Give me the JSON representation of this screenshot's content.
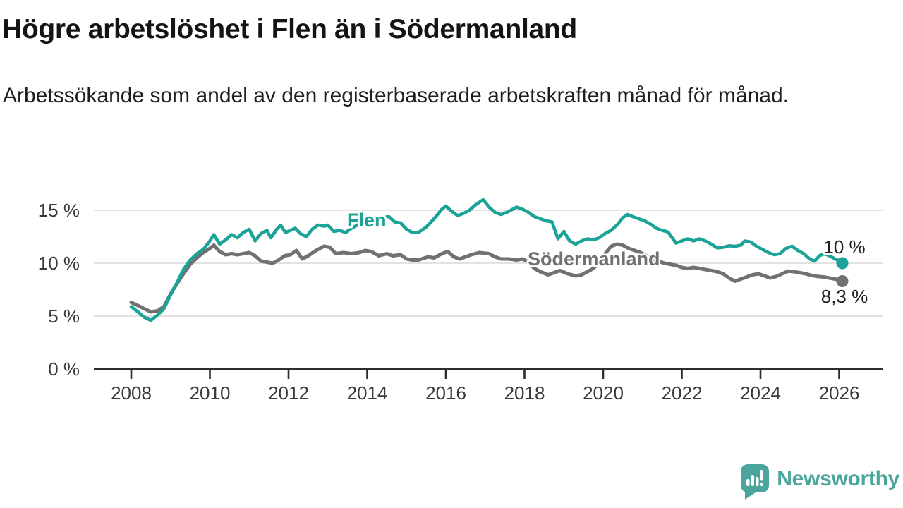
{
  "header": {
    "title": "Högre arbetslöshet i Flen än i Södermanland",
    "subtitle": "Arbetssökande som andel av den registerbaserade arbetskraften månad för månad."
  },
  "branding": {
    "name": "Newsworthy",
    "color": "#4ba59c",
    "icon": "speech-bubble-bar-chart-icon"
  },
  "colors": {
    "flen": "#1aa396",
    "sodermanland": "#717171",
    "gridline": "#d9d9d9",
    "axis": "#2d2d2d",
    "tick_text": "#3a3a3a"
  },
  "chart_data": {
    "type": "line",
    "unit": "%",
    "grid": "horizontal",
    "xlim": [
      2007.1,
      2027.2
    ],
    "ylim": [
      0,
      16.8
    ],
    "x_ticks": [
      "2008",
      "2010",
      "2012",
      "2014",
      "2016",
      "2018",
      "2020",
      "2022",
      "2024",
      "2026"
    ],
    "y_ticks": [
      "0 %",
      "5 %",
      "10 %",
      "15 %"
    ],
    "series": [
      {
        "name": "Flen",
        "color": "#1aa396",
        "end_label": "10 %",
        "end_value": 10.0,
        "points": [
          [
            2008.0,
            5.9
          ],
          [
            2008.17,
            5.4
          ],
          [
            2008.33,
            4.9
          ],
          [
            2008.5,
            4.6
          ],
          [
            2008.67,
            5.1
          ],
          [
            2008.83,
            5.7
          ],
          [
            2009.0,
            7.0
          ],
          [
            2009.17,
            8.2
          ],
          [
            2009.33,
            9.4
          ],
          [
            2009.5,
            10.3
          ],
          [
            2009.67,
            10.9
          ],
          [
            2009.83,
            11.3
          ],
          [
            2010.0,
            12.1
          ],
          [
            2010.1,
            12.7
          ],
          [
            2010.25,
            11.8
          ],
          [
            2010.4,
            12.2
          ],
          [
            2010.55,
            12.7
          ],
          [
            2010.7,
            12.4
          ],
          [
            2010.85,
            12.9
          ],
          [
            2011.0,
            13.2
          ],
          [
            2011.15,
            12.1
          ],
          [
            2011.3,
            12.8
          ],
          [
            2011.45,
            13.1
          ],
          [
            2011.55,
            12.4
          ],
          [
            2011.7,
            13.2
          ],
          [
            2011.8,
            13.6
          ],
          [
            2011.92,
            12.9
          ],
          [
            2012.05,
            13.1
          ],
          [
            2012.17,
            13.3
          ],
          [
            2012.3,
            12.8
          ],
          [
            2012.45,
            12.5
          ],
          [
            2012.6,
            13.2
          ],
          [
            2012.75,
            13.6
          ],
          [
            2012.9,
            13.5
          ],
          [
            2013.0,
            13.6
          ],
          [
            2013.15,
            13.0
          ],
          [
            2013.3,
            13.1
          ],
          [
            2013.45,
            12.9
          ],
          [
            2013.6,
            13.3
          ],
          [
            2013.8,
            13.7
          ],
          [
            2014.0,
            14.0
          ],
          [
            2014.2,
            14.2
          ],
          [
            2014.4,
            14.3
          ],
          [
            2014.55,
            14.4
          ],
          [
            2014.7,
            13.9
          ],
          [
            2014.85,
            13.8
          ],
          [
            2015.0,
            13.2
          ],
          [
            2015.15,
            12.9
          ],
          [
            2015.3,
            12.9
          ],
          [
            2015.5,
            13.4
          ],
          [
            2015.7,
            14.2
          ],
          [
            2015.9,
            15.1
          ],
          [
            2016.0,
            15.4
          ],
          [
            2016.15,
            14.9
          ],
          [
            2016.3,
            14.5
          ],
          [
            2016.45,
            14.7
          ],
          [
            2016.6,
            15.0
          ],
          [
            2016.75,
            15.5
          ],
          [
            2016.95,
            16.0
          ],
          [
            2017.1,
            15.3
          ],
          [
            2017.25,
            14.8
          ],
          [
            2017.4,
            14.6
          ],
          [
            2017.55,
            14.8
          ],
          [
            2017.7,
            15.1
          ],
          [
            2017.8,
            15.3
          ],
          [
            2017.95,
            15.1
          ],
          [
            2018.1,
            14.8
          ],
          [
            2018.25,
            14.4
          ],
          [
            2018.4,
            14.2
          ],
          [
            2018.55,
            14.0
          ],
          [
            2018.7,
            13.9
          ],
          [
            2018.85,
            12.3
          ],
          [
            2019.0,
            13.0
          ],
          [
            2019.15,
            12.1
          ],
          [
            2019.3,
            11.8
          ],
          [
            2019.45,
            12.1
          ],
          [
            2019.6,
            12.3
          ],
          [
            2019.75,
            12.2
          ],
          [
            2019.9,
            12.4
          ],
          [
            2020.05,
            12.8
          ],
          [
            2020.2,
            13.1
          ],
          [
            2020.35,
            13.6
          ],
          [
            2020.5,
            14.3
          ],
          [
            2020.62,
            14.6
          ],
          [
            2020.75,
            14.4
          ],
          [
            2020.9,
            14.2
          ],
          [
            2021.05,
            14.0
          ],
          [
            2021.2,
            13.7
          ],
          [
            2021.35,
            13.3
          ],
          [
            2021.5,
            13.1
          ],
          [
            2021.65,
            12.95
          ],
          [
            2021.85,
            11.9
          ],
          [
            2022.0,
            12.1
          ],
          [
            2022.15,
            12.3
          ],
          [
            2022.3,
            12.1
          ],
          [
            2022.45,
            12.3
          ],
          [
            2022.6,
            12.1
          ],
          [
            2022.75,
            11.8
          ],
          [
            2022.9,
            11.45
          ],
          [
            2023.05,
            11.5
          ],
          [
            2023.2,
            11.65
          ],
          [
            2023.35,
            11.6
          ],
          [
            2023.5,
            11.7
          ],
          [
            2023.6,
            12.1
          ],
          [
            2023.75,
            12.0
          ],
          [
            2023.9,
            11.6
          ],
          [
            2024.05,
            11.3
          ],
          [
            2024.2,
            11.0
          ],
          [
            2024.35,
            10.8
          ],
          [
            2024.5,
            10.9
          ],
          [
            2024.65,
            11.4
          ],
          [
            2024.8,
            11.6
          ],
          [
            2024.95,
            11.2
          ],
          [
            2025.1,
            10.9
          ],
          [
            2025.25,
            10.4
          ],
          [
            2025.38,
            10.2
          ],
          [
            2025.5,
            10.7
          ],
          [
            2025.62,
            10.9
          ],
          [
            2025.75,
            10.7
          ],
          [
            2025.9,
            10.4
          ],
          [
            2026.0,
            10.2
          ],
          [
            2026.08,
            10.0
          ]
        ]
      },
      {
        "name": "Södermanland",
        "color": "#717171",
        "end_label": "8,3 %",
        "end_value": 8.3,
        "points": [
          [
            2008.0,
            6.3
          ],
          [
            2008.17,
            6.0
          ],
          [
            2008.33,
            5.7
          ],
          [
            2008.5,
            5.4
          ],
          [
            2008.67,
            5.5
          ],
          [
            2008.83,
            5.9
          ],
          [
            2009.0,
            7.1
          ],
          [
            2009.17,
            8.1
          ],
          [
            2009.33,
            9.0
          ],
          [
            2009.5,
            9.9
          ],
          [
            2009.67,
            10.5
          ],
          [
            2009.83,
            11.0
          ],
          [
            2010.0,
            11.4
          ],
          [
            2010.1,
            11.7
          ],
          [
            2010.25,
            11.1
          ],
          [
            2010.4,
            10.8
          ],
          [
            2010.55,
            10.9
          ],
          [
            2010.7,
            10.8
          ],
          [
            2010.85,
            10.9
          ],
          [
            2011.0,
            11.0
          ],
          [
            2011.15,
            10.7
          ],
          [
            2011.3,
            10.2
          ],
          [
            2011.45,
            10.1
          ],
          [
            2011.6,
            10.0
          ],
          [
            2011.75,
            10.3
          ],
          [
            2011.9,
            10.7
          ],
          [
            2012.05,
            10.8
          ],
          [
            2012.2,
            11.2
          ],
          [
            2012.35,
            10.4
          ],
          [
            2012.5,
            10.7
          ],
          [
            2012.7,
            11.2
          ],
          [
            2012.9,
            11.6
          ],
          [
            2013.05,
            11.5
          ],
          [
            2013.2,
            10.9
          ],
          [
            2013.4,
            11.0
          ],
          [
            2013.6,
            10.9
          ],
          [
            2013.8,
            11.0
          ],
          [
            2013.95,
            11.2
          ],
          [
            2014.1,
            11.1
          ],
          [
            2014.3,
            10.7
          ],
          [
            2014.5,
            10.9
          ],
          [
            2014.65,
            10.7
          ],
          [
            2014.85,
            10.8
          ],
          [
            2015.0,
            10.4
          ],
          [
            2015.15,
            10.3
          ],
          [
            2015.3,
            10.3
          ],
          [
            2015.55,
            10.6
          ],
          [
            2015.7,
            10.5
          ],
          [
            2015.9,
            10.9
          ],
          [
            2016.05,
            11.1
          ],
          [
            2016.2,
            10.6
          ],
          [
            2016.35,
            10.4
          ],
          [
            2016.5,
            10.6
          ],
          [
            2016.65,
            10.8
          ],
          [
            2016.85,
            11.0
          ],
          [
            2017.1,
            10.9
          ],
          [
            2017.25,
            10.6
          ],
          [
            2017.4,
            10.4
          ],
          [
            2017.6,
            10.4
          ],
          [
            2017.8,
            10.3
          ],
          [
            2017.95,
            10.4
          ],
          [
            2018.1,
            10.1
          ],
          [
            2018.25,
            9.5
          ],
          [
            2018.4,
            9.2
          ],
          [
            2018.6,
            8.9
          ],
          [
            2018.75,
            9.1
          ],
          [
            2018.9,
            9.3
          ],
          [
            2019.1,
            9.0
          ],
          [
            2019.3,
            8.8
          ],
          [
            2019.45,
            8.9
          ],
          [
            2019.6,
            9.2
          ],
          [
            2019.75,
            9.5
          ],
          [
            2019.9,
            10.1
          ],
          [
            2020.05,
            10.9
          ],
          [
            2020.2,
            11.6
          ],
          [
            2020.35,
            11.8
          ],
          [
            2020.5,
            11.7
          ],
          [
            2020.65,
            11.4
          ],
          [
            2020.8,
            11.2
          ],
          [
            2020.95,
            11.0
          ],
          [
            2021.1,
            10.7
          ],
          [
            2021.25,
            10.4
          ],
          [
            2021.4,
            10.2
          ],
          [
            2021.55,
            10.0
          ],
          [
            2021.7,
            9.9
          ],
          [
            2021.85,
            9.8
          ],
          [
            2022.0,
            9.6
          ],
          [
            2022.15,
            9.5
          ],
          [
            2022.3,
            9.6
          ],
          [
            2022.45,
            9.5
          ],
          [
            2022.6,
            9.4
          ],
          [
            2022.75,
            9.3
          ],
          [
            2022.9,
            9.2
          ],
          [
            2023.05,
            9.0
          ],
          [
            2023.2,
            8.6
          ],
          [
            2023.35,
            8.3
          ],
          [
            2023.5,
            8.5
          ],
          [
            2023.65,
            8.7
          ],
          [
            2023.8,
            8.9
          ],
          [
            2023.95,
            9.0
          ],
          [
            2024.1,
            8.8
          ],
          [
            2024.25,
            8.6
          ],
          [
            2024.4,
            8.75
          ],
          [
            2024.55,
            9.0
          ],
          [
            2024.7,
            9.25
          ],
          [
            2024.85,
            9.2
          ],
          [
            2025.0,
            9.1
          ],
          [
            2025.15,
            9.0
          ],
          [
            2025.3,
            8.85
          ],
          [
            2025.45,
            8.75
          ],
          [
            2025.6,
            8.7
          ],
          [
            2025.75,
            8.6
          ],
          [
            2025.9,
            8.5
          ],
          [
            2026.08,
            8.3
          ]
        ]
      }
    ]
  }
}
